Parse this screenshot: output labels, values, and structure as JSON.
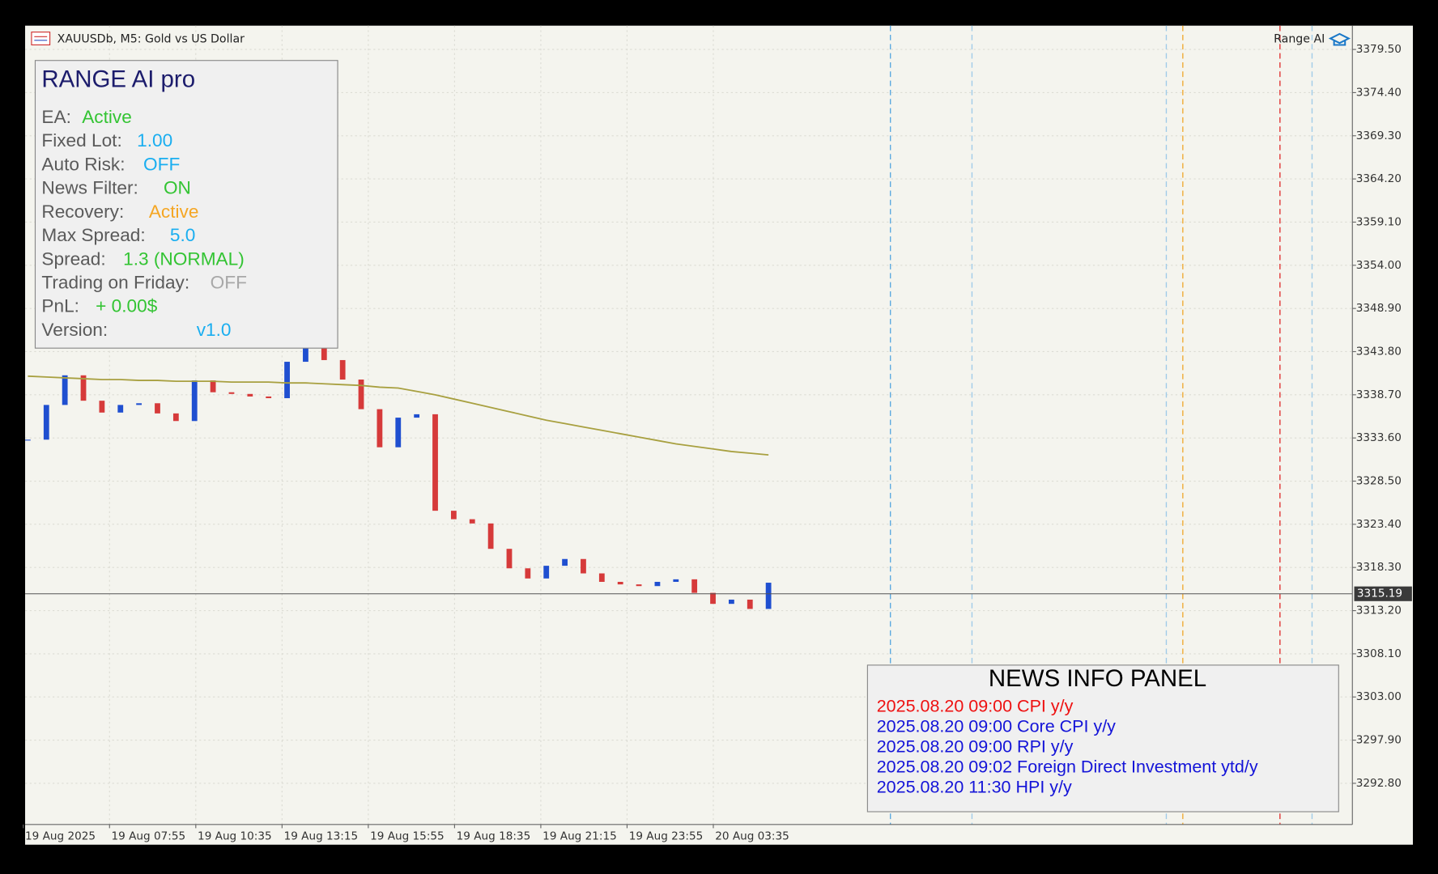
{
  "header": {
    "symbol": "XAUUSDb, M5:  Gold vs US Dollar",
    "indicator": "Range AI"
  },
  "info_panel": {
    "title": "RANGE AI pro",
    "rows": [
      {
        "label": "EA:",
        "value": "Active",
        "color": "#33c433"
      },
      {
        "label": "Fixed Lot:",
        "value": "1.00",
        "color": "#1aaef0"
      },
      {
        "label": "Auto Risk:",
        "value": "OFF",
        "color": "#1aaef0"
      },
      {
        "label": "News Filter:",
        "value": "ON",
        "color": "#33c433"
      },
      {
        "label": "Recovery:",
        "value": "Active",
        "color": "#f5a623"
      },
      {
        "label": "Max Spread:",
        "value": "5.0",
        "color": "#1aaef0"
      },
      {
        "label": "Spread:",
        "value": "1.3 (NORMAL)",
        "color": "#33c433"
      },
      {
        "label": "Trading on Friday:",
        "value": "OFF",
        "color": "#a8a8a8"
      },
      {
        "label": "PnL:",
        "value": "+ 0.00$",
        "color": "#33c433"
      },
      {
        "label": "Version:",
        "value": "v1.0",
        "color": "#1aaef0"
      }
    ]
  },
  "news_panel": {
    "title": "NEWS INFO PANEL",
    "items": [
      {
        "text": "2025.08.20 09:00 CPI y/y",
        "color": "#ee1111"
      },
      {
        "text": "2025.08.20 09:00 Core CPI y/y",
        "color": "#1414d8"
      },
      {
        "text": "2025.08.20 09:00 RPI y/y",
        "color": "#1414d8"
      },
      {
        "text": "2025.08.20 09:02 Foreign Direct Investment ytd/y",
        "color": "#1414d8"
      },
      {
        "text": "2025.08.20 11:30 HPI y/y",
        "color": "#1414d8"
      }
    ]
  },
  "chart_data": {
    "type": "candlestick",
    "categories": [
      "19 Aug 2025",
      "19 Aug 07:55",
      "19 Aug 10:35",
      "19 Aug 13:15",
      "19 Aug 15:55",
      "19 Aug 18:35",
      "19 Aug 21:15",
      "19 Aug 23:55",
      "20 Aug 03:35"
    ],
    "close": [
      3333.4,
      3337.5,
      3341.0,
      3338.0,
      3336.6,
      3337.5,
      3337.7,
      3336.5,
      3335.6,
      3340.4,
      3339.0,
      3338.8,
      3338.5,
      3338.3,
      3342.6,
      3344.2,
      3342.8,
      3340.5,
      3337.0,
      3332.5,
      3336.0,
      3336.4,
      3325.0,
      3324.0,
      3323.5,
      3320.5,
      3318.2,
      3317.0,
      3318.5,
      3319.3,
      3317.6,
      3316.6,
      3316.3,
      3316.1,
      3316.6,
      3316.9,
      3315.3,
      3314.0,
      3314.5,
      3313.4,
      3316.5
    ],
    "ma": [
      3340.9,
      3340.8,
      3340.7,
      3340.6,
      3340.5,
      3340.5,
      3340.4,
      3340.4,
      3340.3,
      3340.3,
      3340.3,
      3340.2,
      3340.2,
      3340.2,
      3340.1,
      3340.1,
      3340.0,
      3339.9,
      3339.8,
      3339.6,
      3339.5,
      3339.1,
      3338.7,
      3338.2,
      3337.7,
      3337.2,
      3336.7,
      3336.2,
      3335.7,
      3335.3,
      3334.9,
      3334.5,
      3334.1,
      3333.7,
      3333.3,
      3332.9,
      3332.6,
      3332.3,
      3332.0,
      3331.8,
      3331.6
    ],
    "up_color": "#1f4fd0",
    "down_color": "#d63a3a",
    "ma_color": "#a8a040",
    "current_price": {
      "value": 3315.19,
      "label": "3315.19"
    },
    "ylim": [
      3287.93,
      3382.31
    ],
    "yticks": [
      {
        "value": 3379.5,
        "label": "3379.50"
      },
      {
        "value": 3374.4,
        "label": "3374.40"
      },
      {
        "value": 3369.3,
        "label": "3369.30"
      },
      {
        "value": 3364.2,
        "label": "3364.20"
      },
      {
        "value": 3359.1,
        "label": "3359.10"
      },
      {
        "value": 3354.0,
        "label": "3354.00"
      },
      {
        "value": 3348.9,
        "label": "3348.90"
      },
      {
        "value": 3343.8,
        "label": "3343.80"
      },
      {
        "value": 3338.7,
        "label": "3338.70"
      },
      {
        "value": 3333.6,
        "label": "3333.60"
      },
      {
        "value": 3328.5,
        "label": "3328.50"
      },
      {
        "value": 3323.4,
        "label": "3323.40"
      },
      {
        "value": 3318.3,
        "label": "3318.30"
      },
      {
        "value": 3313.2,
        "label": "3313.20"
      },
      {
        "value": 3308.1,
        "label": "3308.10"
      },
      {
        "value": 3303.0,
        "label": "3303.00"
      },
      {
        "value": 3297.9,
        "label": "3297.90"
      },
      {
        "value": 3292.8,
        "label": "3292.80"
      }
    ],
    "grid": true
  }
}
